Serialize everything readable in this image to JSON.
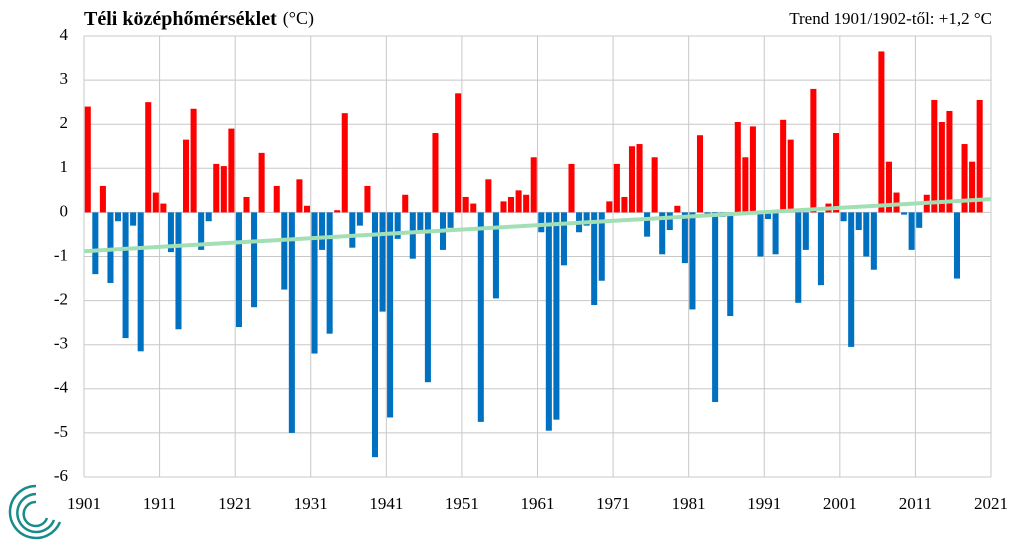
{
  "chart_data": {
    "type": "bar",
    "title": "Téli középhőmérséklet",
    "unit": "(°C)",
    "subtitle": "Trend 1901/1902-től: +1,2 °C",
    "x": [
      1901,
      1902,
      1903,
      1904,
      1905,
      1906,
      1907,
      1908,
      1909,
      1910,
      1911,
      1912,
      1913,
      1914,
      1915,
      1916,
      1917,
      1918,
      1919,
      1920,
      1921,
      1922,
      1923,
      1924,
      1925,
      1926,
      1927,
      1928,
      1929,
      1930,
      1931,
      1932,
      1933,
      1934,
      1935,
      1936,
      1937,
      1938,
      1939,
      1940,
      1941,
      1942,
      1943,
      1944,
      1945,
      1946,
      1947,
      1948,
      1949,
      1950,
      1951,
      1952,
      1953,
      1954,
      1955,
      1956,
      1957,
      1958,
      1959,
      1960,
      1961,
      1962,
      1963,
      1964,
      1965,
      1966,
      1967,
      1968,
      1969,
      1970,
      1971,
      1972,
      1973,
      1974,
      1975,
      1976,
      1977,
      1978,
      1979,
      1980,
      1981,
      1982,
      1983,
      1984,
      1985,
      1986,
      1987,
      1988,
      1989,
      1990,
      1991,
      1992,
      1993,
      1994,
      1995,
      1996,
      1997,
      1998,
      1999,
      2000,
      2001,
      2002,
      2003,
      2004,
      2005,
      2006,
      2007,
      2008,
      2009,
      2010,
      2011,
      2012,
      2013,
      2014,
      2015,
      2016,
      2017,
      2018,
      2019
    ],
    "values": [
      2.4,
      -1.4,
      0.6,
      -1.6,
      -0.2,
      -2.85,
      -0.3,
      -3.15,
      2.5,
      0.45,
      0.2,
      -0.9,
      -2.65,
      1.65,
      2.35,
      -0.85,
      -0.2,
      1.1,
      1.05,
      1.9,
      -2.6,
      0.35,
      -2.15,
      1.35,
      0.0,
      0.6,
      -1.75,
      -5.0,
      0.75,
      0.15,
      -3.2,
      -0.85,
      -2.75,
      0.05,
      2.25,
      -0.8,
      -0.3,
      0.6,
      -5.55,
      -2.25,
      -4.65,
      -0.6,
      0.4,
      -1.05,
      -0.45,
      -3.85,
      1.8,
      -0.85,
      -0.35,
      2.7,
      0.35,
      0.2,
      -4.75,
      0.75,
      -1.95,
      0.25,
      0.35,
      0.5,
      0.4,
      1.25,
      -0.45,
      -4.95,
      -4.7,
      -1.2,
      1.1,
      -0.45,
      -0.3,
      -2.1,
      -1.55,
      0.25,
      1.1,
      0.35,
      1.5,
      1.55,
      -0.55,
      1.25,
      -0.95,
      -0.4,
      0.15,
      -1.15,
      -2.2,
      1.75,
      -0.1,
      -4.3,
      -0.1,
      -2.35,
      2.05,
      1.25,
      1.95,
      -1.0,
      -0.15,
      -0.95,
      2.1,
      1.65,
      -2.05,
      -0.85,
      2.8,
      -1.65,
      0.2,
      1.8,
      -0.2,
      -3.05,
      -0.4,
      -1.0,
      -1.3,
      3.65,
      1.15,
      0.45,
      -0.05,
      -0.85,
      -0.35,
      0.4,
      2.55,
      2.05,
      2.3,
      -1.5,
      1.55,
      1.15,
      2.55
    ],
    "positive_color": "#ff0000",
    "negative_color": "#0070c0",
    "trend": {
      "x": [
        1901,
        2021
      ],
      "values": [
        -0.88,
        0.3
      ],
      "color": "#a3dfb5"
    },
    "xlim": [
      1901,
      2021
    ],
    "xticks": [
      1901,
      1911,
      1921,
      1931,
      1941,
      1951,
      1961,
      1971,
      1981,
      1991,
      2001,
      2011,
      2021
    ],
    "ylim": [
      -6,
      4
    ],
    "yticks": [
      -6,
      -5,
      -4,
      -3,
      -2,
      -1,
      0,
      1,
      2,
      3,
      4
    ],
    "grid": true
  }
}
